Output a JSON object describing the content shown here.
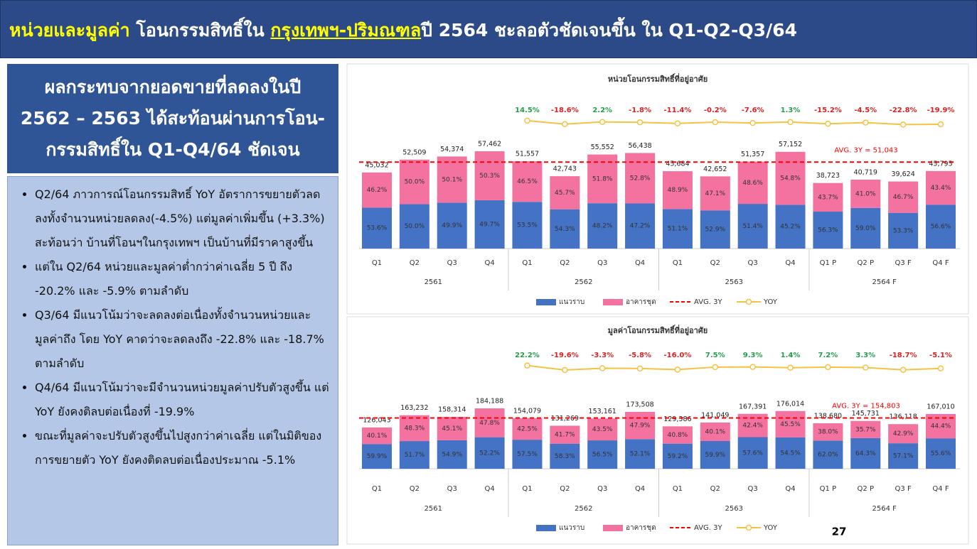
{
  "header": {
    "title_parts": [
      "หน่วยและมูลค่า",
      " โอนกรรมสิทธิ์ใน ",
      "กรุงเทพฯ-ปริมณฑล",
      "ปี 2564 ชะลอตัวชัดเจนขึ้น ใน Q1-Q2-Q3/64"
    ]
  },
  "panel": {
    "heading": "ผลกระทบจากยอดขายที่ลดลงในปี 2562 – 2563 ได้สะท้อนผ่านการโอน-กรรมสิทธิ์ใน Q1-Q4/64 ชัดเจน",
    "bullets": [
      "Q2/64  ภาวการณ์โอนกรรมสิทธิ์ YoY  อัตราการขยายตัวลดลงทั้งจำนวนหน่วยลดลง(-4.5%) แต่มูลค่าเพิ่มขึ้น (+3.3%)  สะท้อนว่า บ้านที่โอนฯในกรุงเทพฯ เป็นบ้านที่มีราคาสูงขึ้น",
      "แต่ใน Q2/64  หน่วยและมูลค่าต่ำกว่าค่าเฉลี่ย 5 ปี ถึง -20.2% และ -5.9% ตามลำดับ",
      "Q3/64    มีแนวโน้มว่าจะลดลงต่อเนื่องทั้งจำนวนหน่วยและมูลค่าถึง โดย YoY   คาดว่าจะลดลงถึง -22.8% และ -18.7% ตามลำดับ",
      "Q4/64 มีแนวโน้มว่าจะมีจำนวนหน่วยมูลค่าปรับตัวสูงขึ้น แต่ YoY ยังคงติลบต่อเนื่องที่ -19.9%",
      "ขณะที่มูลค่าจะปรับตัวสูงขึ้นไปสูงกว่าค่าเฉลี่ย แต่ในมิติของการขยายตัว YoY   ยังคงติดลบต่อเนื่องประมาณ -5.1%"
    ]
  },
  "page_number": "27",
  "chart_data": [
    {
      "type": "bar",
      "title": "หน่วยโอนกรรมสิทธิ์ที่อยู่อาศัย",
      "categories": [
        "Q1",
        "Q2",
        "Q3",
        "Q4",
        "Q1",
        "Q2",
        "Q3",
        "Q4",
        "Q1",
        "Q2",
        "Q3",
        "Q4",
        "Q1 P",
        "Q2 P",
        "Q3 F",
        "Q4 F"
      ],
      "category_groups": [
        "2561",
        "2562",
        "2563",
        "2564 F"
      ],
      "totals": {
        "values": [
          45032,
          52509,
          54374,
          57462,
          51557,
          42743,
          55552,
          56438,
          45684,
          42652,
          51357,
          57152,
          38723,
          40719,
          39624,
          45795
        ],
        "value_labels": [
          "45,032",
          "52,509",
          "54,374",
          "57,462",
          "51,557",
          "42,743",
          "55,552",
          "56,438",
          "45,684",
          "42,652",
          "51,357",
          "57,152",
          "38,723",
          "40,719",
          "39,624",
          "45,795"
        ]
      },
      "series": [
        {
          "name": "แนวราบ",
          "color": "#4472c4",
          "values": [
            53.6,
            50.0,
            49.9,
            49.7,
            53.5,
            54.3,
            48.2,
            47.2,
            51.1,
            52.9,
            51.4,
            45.2,
            56.3,
            59.0,
            53.3,
            56.6
          ],
          "value_labels": [
            "53.6%",
            "50.0%",
            "49.9%",
            "49.7%",
            "53.5%",
            "54.3%",
            "48.2%",
            "47.2%",
            "51.1%",
            "52.9%",
            "51.4%",
            "45.2%",
            "56.3%",
            "59.0%",
            "53.3%",
            "56.6%"
          ]
        },
        {
          "name": "อาคารชุด",
          "color": "#f4729f",
          "values": [
            46.2,
            50.0,
            50.1,
            50.3,
            46.5,
            45.7,
            51.8,
            52.8,
            48.9,
            47.1,
            48.6,
            54.8,
            43.7,
            41.0,
            46.7,
            43.4
          ],
          "value_labels": [
            "46.2%",
            "50.0%",
            "50.1%",
            "50.3%",
            "46.5%",
            "45.7%",
            "51.8%",
            "52.8%",
            "48.9%",
            "47.1%",
            "48.6%",
            "54.8%",
            "43.7%",
            "41.0%",
            "46.7%",
            "43.4%"
          ]
        },
        {
          "name": "YOY",
          "type": "line",
          "color": "#f5c342",
          "values": [
            null,
            null,
            null,
            null,
            14.5,
            -18.6,
            2.2,
            -1.8,
            -11.4,
            -0.2,
            -7.6,
            1.3,
            -15.2,
            -4.5,
            -22.8,
            -19.9
          ],
          "value_labels": [
            null,
            null,
            null,
            null,
            "14.5%",
            "-18.6%",
            "2.2%",
            "-1.8%",
            "-11.4%",
            "-0.2%",
            "-7.6%",
            "1.3%",
            "-15.2%",
            "-4.5%",
            "-22.8%",
            "-19.9%"
          ]
        }
      ],
      "avg": {
        "name": "AVG. 3Y",
        "label": "AVG. 3Y =  51,043",
        "value": 51043,
        "color": "#ff0000"
      }
    },
    {
      "type": "bar",
      "title": "มูลค่าโอนกรรมสิทธิ์ที่อยู่อาศัย",
      "categories": [
        "Q1",
        "Q2",
        "Q3",
        "Q4",
        "Q1",
        "Q2",
        "Q3",
        "Q4",
        "Q1",
        "Q2",
        "Q3",
        "Q4",
        "Q1 P",
        "Q2 P",
        "Q3 F",
        "Q4 F"
      ],
      "category_groups": [
        "2561",
        "2562",
        "2563",
        "2564 F"
      ],
      "totals": {
        "values": [
          126043,
          163232,
          158314,
          184188,
          154079,
          131269,
          153161,
          173508,
          129386,
          141049,
          167391,
          176014,
          138680,
          145731,
          136118,
          167010
        ],
        "value_labels": [
          "126,043",
          "163,232",
          "158,314",
          "184,188",
          "154,079",
          "131,269",
          "153,161",
          "173,508",
          "129,386",
          "141,049",
          "167,391",
          "176,014",
          "138,680",
          "145,731",
          "136,118",
          "167,010"
        ]
      },
      "series": [
        {
          "name": "แนวราบ",
          "color": "#4472c4",
          "values": [
            59.9,
            51.7,
            54.9,
            52.2,
            57.5,
            58.3,
            56.5,
            52.1,
            59.2,
            59.9,
            57.6,
            54.5,
            62.0,
            64.3,
            57.1,
            55.6
          ],
          "value_labels": [
            "59.9%",
            "51.7%",
            "54.9%",
            "52.2%",
            "57.5%",
            "58.3%",
            "56.5%",
            "52.1%",
            "59.2%",
            "59.9%",
            "57.6%",
            "54.5%",
            "62.0%",
            "64.3%",
            "57.1%",
            "55.6%"
          ]
        },
        {
          "name": "อาคารชุด",
          "color": "#f4729f",
          "values": [
            40.1,
            48.3,
            45.1,
            47.8,
            42.5,
            41.7,
            43.5,
            47.9,
            40.8,
            40.1,
            42.4,
            45.5,
            38.0,
            35.7,
            42.9,
            44.4
          ],
          "value_labels": [
            "40.1%",
            "48.3%",
            "45.1%",
            "47.8%",
            "42.5%",
            "41.7%",
            "43.5%",
            "47.9%",
            "40.8%",
            "40.1%",
            "42.4%",
            "45.5%",
            "38.0%",
            "35.7%",
            "42.9%",
            "44.4%"
          ]
        },
        {
          "name": "YOY",
          "type": "line",
          "color": "#f5c342",
          "values": [
            null,
            null,
            null,
            null,
            22.2,
            -19.6,
            -3.3,
            -5.8,
            -16.0,
            7.5,
            9.3,
            1.4,
            7.2,
            3.3,
            -18.7,
            -5.1
          ],
          "value_labels": [
            null,
            null,
            null,
            null,
            "22.2%",
            "-19.6%",
            "-3.3%",
            "-5.8%",
            "-16.0%",
            "7.5%",
            "9.3%",
            "1.4%",
            "7.2%",
            "3.3%",
            "-18.7%",
            "-5.1%"
          ]
        }
      ],
      "avg": {
        "name": "AVG. 3Y",
        "label": "AVG. 3Y = 154,803",
        "value": 154803,
        "color": "#ff0000"
      }
    }
  ]
}
